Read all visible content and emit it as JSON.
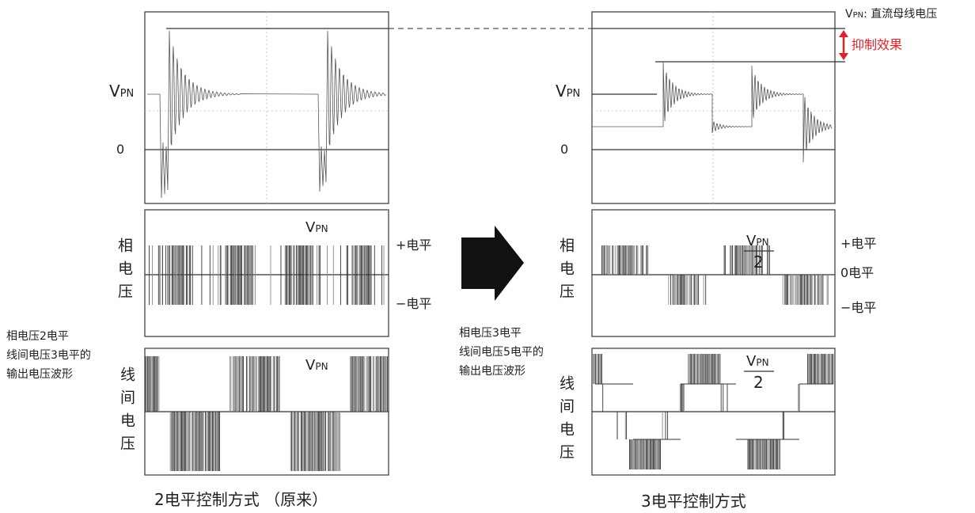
{
  "legend": {
    "symbol": "V",
    "subscript": "PN",
    "text": ": 直流母线电压"
  },
  "suppression_label": "抑制效果",
  "left": {
    "vpn": {
      "symbol": "V",
      "subscript": "PN"
    },
    "zero": "0",
    "phase_label": "相电压",
    "phase_plus": "+电平",
    "phase_minus": "−电平",
    "phase_vpn": {
      "symbol": "V",
      "subscript": "PN"
    },
    "line_label": "线间电压",
    "line_vpn": {
      "symbol": "V",
      "subscript": "PN"
    },
    "caption": "2电平控制方式 （原来）",
    "note": [
      "相电压2电平",
      "线间电压3电平的",
      "输出电压波形"
    ]
  },
  "right": {
    "vpn": {
      "symbol": "V",
      "subscript": "PN"
    },
    "zero": "0",
    "phase_label": "相电压",
    "phase_plus": "+电平",
    "phase_zero": "0电平",
    "phase_minus": "−电平",
    "phase_vpn": {
      "symbol": "V",
      "subscript": "PN",
      "denominator": "2"
    },
    "line_label": "线间电压",
    "line_vpn": {
      "symbol": "V",
      "subscript": "PN",
      "denominator": "2"
    },
    "caption": "3电平控制方式",
    "note": [
      "相电压3电平",
      "线间电压5电平的",
      "输出电压波形"
    ]
  }
}
